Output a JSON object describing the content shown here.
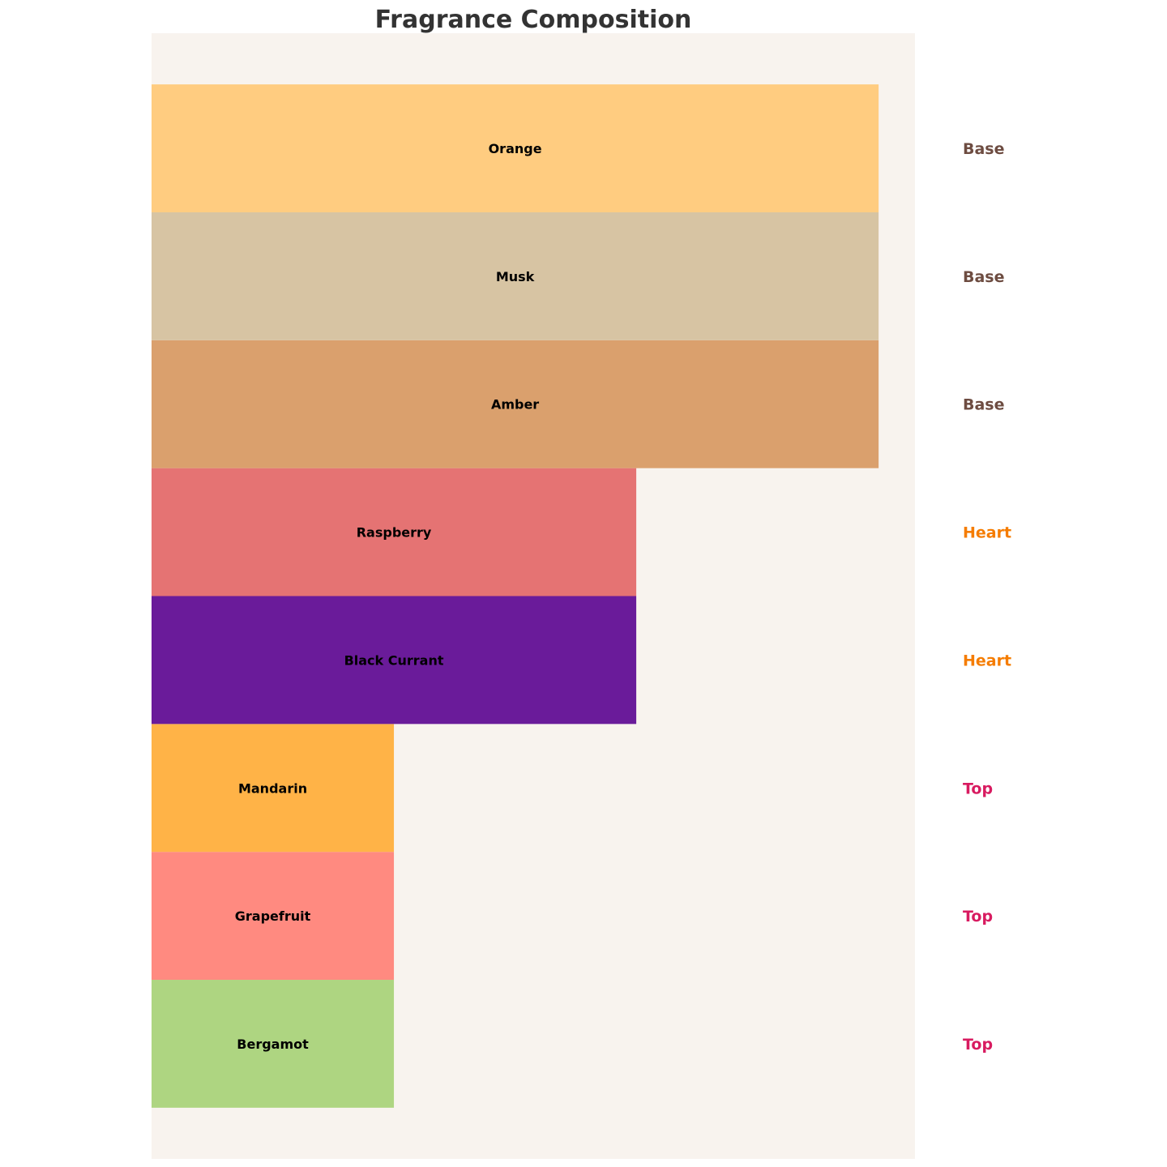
{
  "chart_data": {
    "type": "bar",
    "orientation": "horizontal",
    "title": "Fragrance Composition",
    "xlabel": "",
    "ylabel": "",
    "xlim": [
      0,
      3.15
    ],
    "grid": false,
    "axes_visible": false,
    "background_color": "#F8F3EE",
    "categories": [
      "Bergamot",
      "Grapefruit",
      "Mandarin",
      "Black Currant",
      "Raspberry",
      "Amber",
      "Musk",
      "Orange"
    ],
    "values": [
      1,
      1,
      1,
      2,
      2,
      3,
      3,
      3
    ],
    "note_types": [
      "Top",
      "Top",
      "Top",
      "Heart",
      "Heart",
      "Base",
      "Base",
      "Base"
    ],
    "colors": [
      "#AED581",
      "#FF8A80",
      "#FFB347",
      "#6A1B9A",
      "#E57373",
      "#DAA06D",
      "#D7C4A3",
      "#FFCC80"
    ],
    "note_type_colors": {
      "Top": "#D81B60",
      "Heart": "#F57C00",
      "Base": "#6D4C41"
    }
  }
}
